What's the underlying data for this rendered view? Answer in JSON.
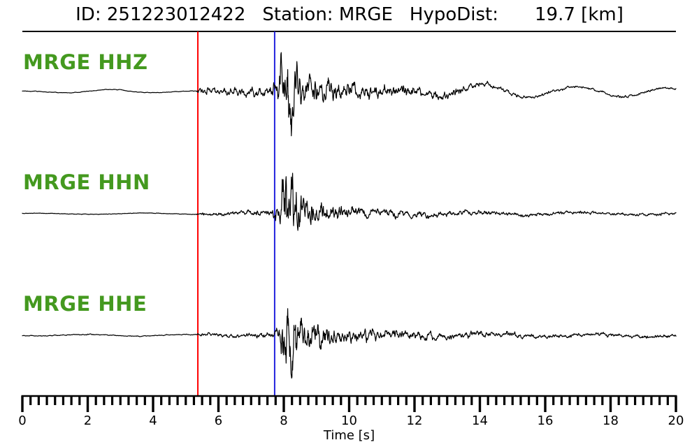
{
  "header": {
    "id_label": "ID:",
    "id_value": "251223012422",
    "station_label": "Station:",
    "station_value": "MRGE",
    "hypodist_label": "HypoDist:",
    "hypodist_value": "19.7",
    "hypodist_unit": "[km]"
  },
  "colors": {
    "background": "#ffffff",
    "trace": "#000000",
    "axis": "#000000",
    "channel_label_green": "#44991f",
    "p_pick_red": "#ff0000",
    "s_pick_blue": "#2222dd"
  },
  "chart_data": {
    "type": "line",
    "title": "ID: 251223012422  Station: MRGE  HypoDist:  19.7 [km]",
    "xlabel": "Time [s]",
    "xlim": [
      0,
      20
    ],
    "xticks": [
      0,
      2,
      4,
      6,
      8,
      10,
      12,
      14,
      16,
      18,
      20
    ],
    "minor_tick_step": 0.25,
    "grid": false,
    "legend": "none",
    "sample_step_s": 0.01,
    "picks": [
      {
        "name": "P-pick",
        "time_s": 5.37,
        "color_key": "p_pick_red"
      },
      {
        "name": "S-pick",
        "time_s": 7.72,
        "color_key": "s_pick_blue"
      }
    ],
    "traces": [
      {
        "label": "MRGE HHZ",
        "station": "MRGE",
        "channel": "HHZ",
        "seed": 20251223,
        "hf_envelope": [
          [
            0,
            0.5
          ],
          [
            5.3,
            0.5
          ],
          [
            5.42,
            6
          ],
          [
            6.1,
            6.5
          ],
          [
            6.7,
            8
          ],
          [
            7.2,
            9.5
          ],
          [
            7.55,
            9
          ],
          [
            7.8,
            16
          ],
          [
            7.92,
            60
          ],
          [
            8.0,
            80
          ],
          [
            8.22,
            62
          ],
          [
            8.45,
            40
          ],
          [
            8.8,
            30
          ],
          [
            9.3,
            24
          ],
          [
            9.9,
            17
          ],
          [
            10.6,
            13
          ],
          [
            11.5,
            10
          ],
          [
            12.6,
            8.5
          ],
          [
            13.6,
            6
          ],
          [
            14.6,
            3.5
          ],
          [
            16,
            2.5
          ],
          [
            18,
            2.2
          ],
          [
            20,
            2
          ]
        ],
        "lf_freq_hz": 0.35,
        "lf_phase": 2.0,
        "lf_envelope": [
          [
            0,
            0.8
          ],
          [
            2.2,
            2.5
          ],
          [
            3.0,
            3.2
          ],
          [
            4.0,
            1.5
          ],
          [
            5.5,
            0.8
          ],
          [
            7,
            1.5
          ],
          [
            9,
            2
          ],
          [
            11,
            2.5
          ],
          [
            12.5,
            6
          ],
          [
            14,
            9
          ],
          [
            15.5,
            8.5
          ],
          [
            17,
            7
          ],
          [
            18.5,
            7.5
          ],
          [
            20,
            5
          ]
        ]
      },
      {
        "label": "MRGE HHN",
        "station": "MRGE",
        "channel": "HHN",
        "seed": 77001,
        "hf_envelope": [
          [
            0,
            0.5
          ],
          [
            5.3,
            0.5
          ],
          [
            5.42,
            3
          ],
          [
            6.3,
            3.5
          ],
          [
            7.1,
            4.5
          ],
          [
            7.6,
            6
          ],
          [
            7.85,
            14
          ],
          [
            7.96,
            60
          ],
          [
            8.08,
            75
          ],
          [
            8.3,
            55
          ],
          [
            8.55,
            35
          ],
          [
            8.9,
            22
          ],
          [
            9.3,
            16
          ],
          [
            9.9,
            11
          ],
          [
            10.6,
            8
          ],
          [
            11.5,
            6.5
          ],
          [
            12.5,
            5.5
          ],
          [
            13.5,
            4.5
          ],
          [
            15,
            3.5
          ],
          [
            17,
            3
          ],
          [
            20,
            2.5
          ]
        ],
        "lf_freq_hz": 0.3,
        "lf_phase": 0.7,
        "lf_envelope": [
          [
            0,
            0.6
          ],
          [
            3,
            1
          ],
          [
            6,
            0.8
          ],
          [
            10,
            1.2
          ],
          [
            13,
            1.5
          ],
          [
            16,
            2
          ],
          [
            20,
            1.5
          ]
        ]
      },
      {
        "label": "MRGE HHE",
        "station": "MRGE",
        "channel": "HHE",
        "seed": 424242,
        "hf_envelope": [
          [
            0,
            0.8
          ],
          [
            5.3,
            0.8
          ],
          [
            5.42,
            3
          ],
          [
            6.4,
            4
          ],
          [
            7.2,
            4.5
          ],
          [
            7.6,
            6
          ],
          [
            7.85,
            12
          ],
          [
            7.96,
            65
          ],
          [
            8.1,
            85
          ],
          [
            8.3,
            60
          ],
          [
            8.55,
            38
          ],
          [
            8.95,
            24
          ],
          [
            9.4,
            18
          ],
          [
            9.9,
            14
          ],
          [
            10.6,
            11
          ],
          [
            11.6,
            8.5
          ],
          [
            12.6,
            7
          ],
          [
            13.6,
            5.5
          ],
          [
            15,
            4.5
          ],
          [
            16.5,
            3.5
          ],
          [
            18,
            3.5
          ],
          [
            20,
            3
          ]
        ],
        "lf_freq_hz": 0.32,
        "lf_phase": 4.0,
        "lf_envelope": [
          [
            0,
            0.7
          ],
          [
            3,
            1.2
          ],
          [
            6,
            0.8
          ],
          [
            10,
            1.5
          ],
          [
            13,
            1.8
          ],
          [
            16,
            2
          ],
          [
            20,
            1.8
          ]
        ]
      }
    ]
  }
}
